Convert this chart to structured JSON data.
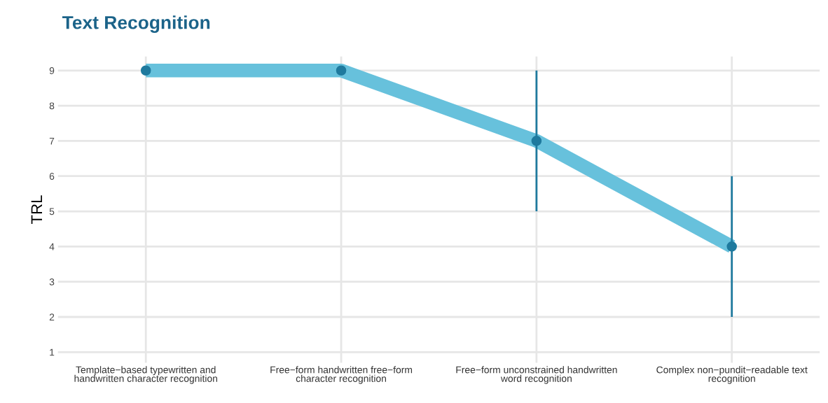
{
  "chart_data": {
    "type": "line",
    "title": "Text Recognition",
    "ylabel": "TRL",
    "categories": [
      "Template−based typewritten and handwritten character recognition",
      "Free−form handwritten free−form character recognition",
      "Free−form unconstrained handwritten word recognition",
      "Complex non−pundit−readable text recognition"
    ],
    "series": [
      {
        "color": "#67c1dc",
        "values": [
          9,
          9,
          7,
          4
        ],
        "marker": "none"
      },
      {
        "type": "scatter",
        "color": "#1f7a9e",
        "values": [
          9,
          9,
          7,
          4
        ],
        "errors": [
          null,
          null,
          [
            5,
            9
          ],
          [
            2,
            6
          ]
        ],
        "marker": "circle"
      }
    ],
    "ylim": [
      0.7,
      9.4
    ],
    "yticks": [
      1,
      2,
      3,
      4,
      5,
      6,
      7,
      8,
      9
    ],
    "grid": true
  }
}
